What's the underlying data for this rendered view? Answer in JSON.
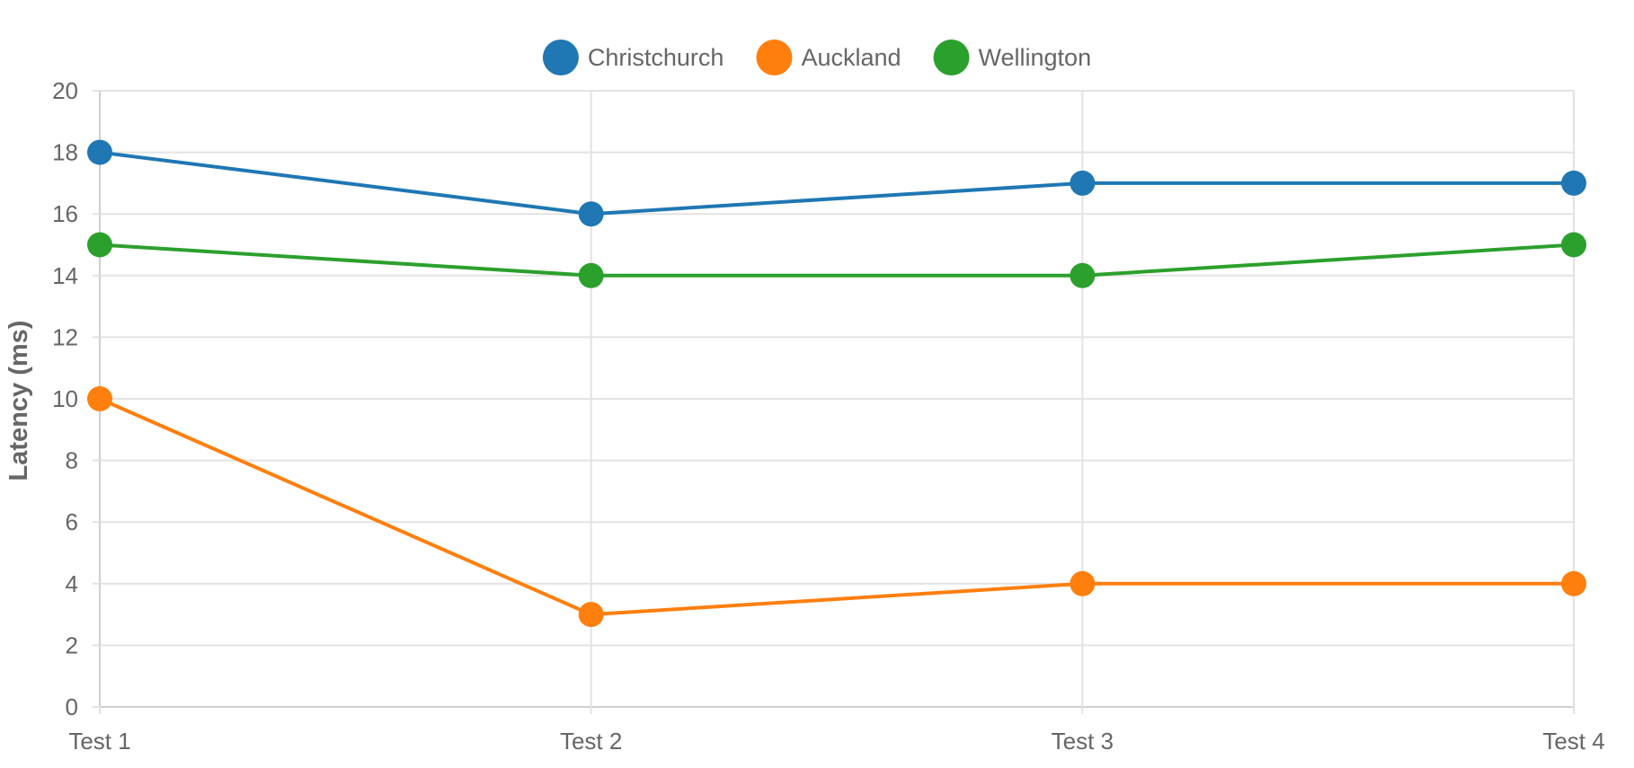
{
  "chart_data": {
    "type": "line",
    "title": "",
    "xlabel": "",
    "ylabel": "Latency (ms)",
    "categories": [
      "Test 1",
      "Test 2",
      "Test 3",
      "Test 4"
    ],
    "ylim": [
      0,
      20
    ],
    "yticks": [
      0,
      2,
      4,
      6,
      8,
      10,
      12,
      14,
      16,
      18,
      20
    ],
    "grid": true,
    "legend_position": "top",
    "series": [
      {
        "name": "Christchurch",
        "color": "#1f77b4",
        "values": [
          18,
          16,
          17,
          17
        ]
      },
      {
        "name": "Auckland",
        "color": "#ff7f0e",
        "values": [
          10,
          3,
          4,
          4
        ]
      },
      {
        "name": "Wellington",
        "color": "#2ca02c",
        "values": [
          15,
          14,
          14,
          15
        ]
      }
    ]
  }
}
